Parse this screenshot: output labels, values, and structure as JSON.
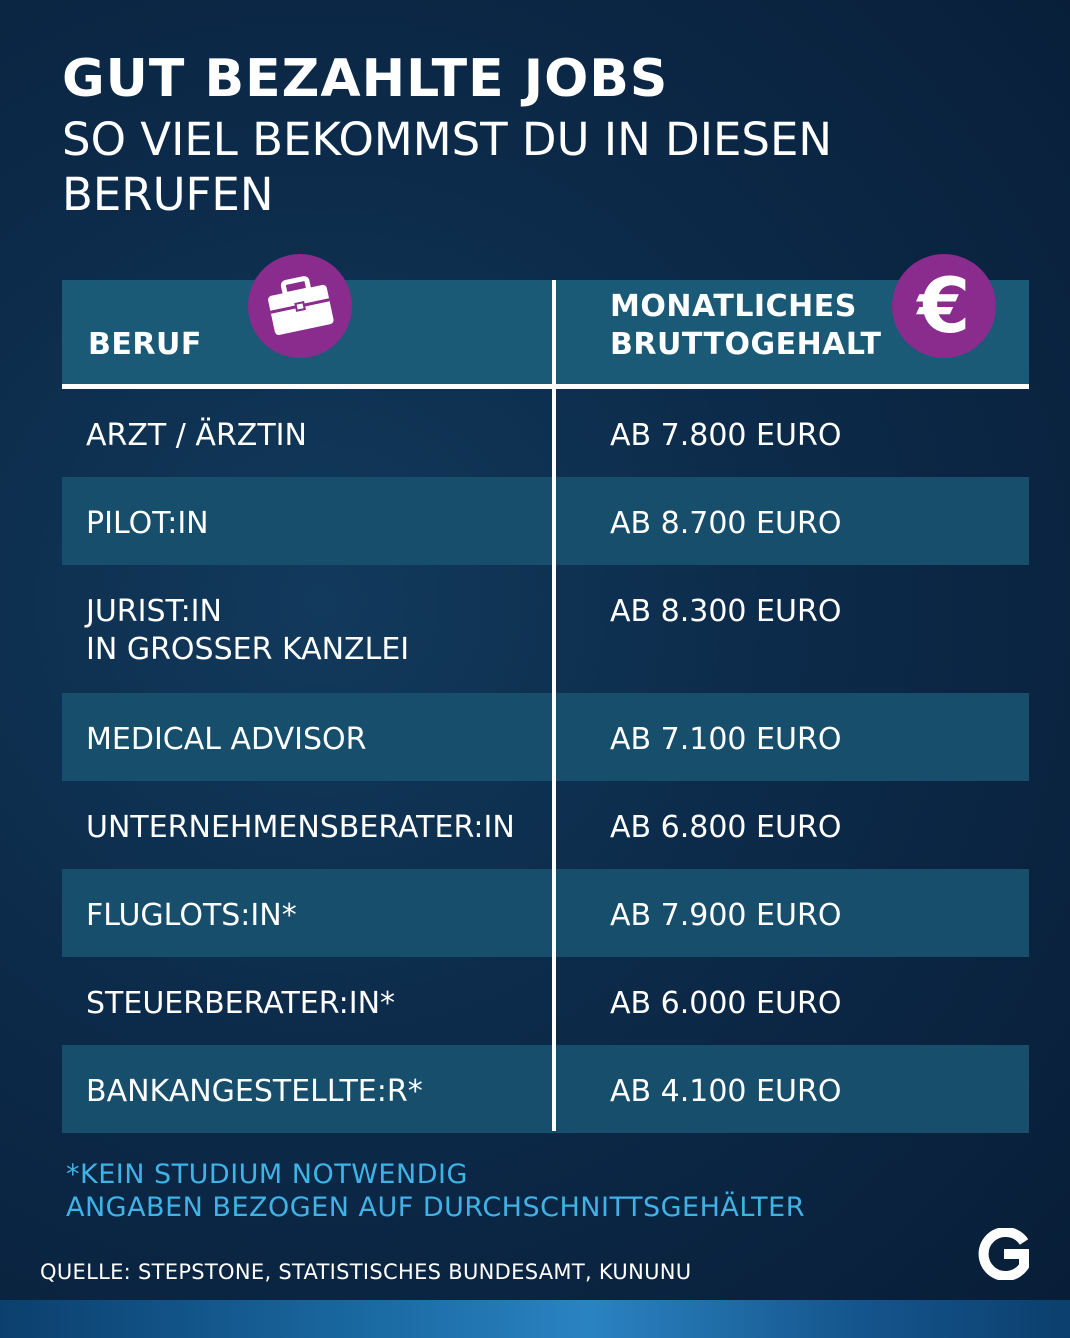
{
  "header": {
    "title": "GUT BEZAHLTE JOBS",
    "subtitle": "SO VIEL BEKOMMST DU IN DIESEN BERUFEN"
  },
  "table": {
    "col_job": "BERUF",
    "col_salary": "MONATLICHES BRUTTOGEHALT",
    "job_icon": "briefcase-icon",
    "salary_icon": "euro-icon",
    "rows": [
      {
        "job": "ARZT / ÄRZTIN",
        "salary": "AB 7.800 EURO"
      },
      {
        "job": "PILOT:IN",
        "salary": "AB 8.700 EURO"
      },
      {
        "job": "JURIST:IN\nIN GROSSER KANZLEI",
        "salary": "AB 8.300 EURO"
      },
      {
        "job": "MEDICAL ADVISOR",
        "salary": "AB 7.100 EURO"
      },
      {
        "job": "UNTERNEHMENSBERATER:IN",
        "salary": "AB 6.800 EURO"
      },
      {
        "job": "FLUGLOTS:IN*",
        "salary": "AB 7.900 EURO"
      },
      {
        "job": "STEUERBERATER:IN*",
        "salary": "AB 6.000 EURO"
      },
      {
        "job": "BANKANGESTELLTE:R*",
        "salary": "AB 4.100 EURO"
      }
    ]
  },
  "notes": {
    "line1": "*KEIN STUDIUM NOTWENDIG",
    "line2": "ANGABEN BEZOGEN AUF DURCHSCHNITTSGEHÄLTER"
  },
  "source": "QUELLE: STEPSTONE, STATISTISCHES BUNDESAMT, KUNUNU",
  "colors": {
    "background": "#0c2a49",
    "row_shade": "#174e6c",
    "header_band": "#1a5a77",
    "icon_circle": "#8a2b8e",
    "note_text": "#3fb3e6"
  },
  "logo_icon": "g-logo-icon"
}
